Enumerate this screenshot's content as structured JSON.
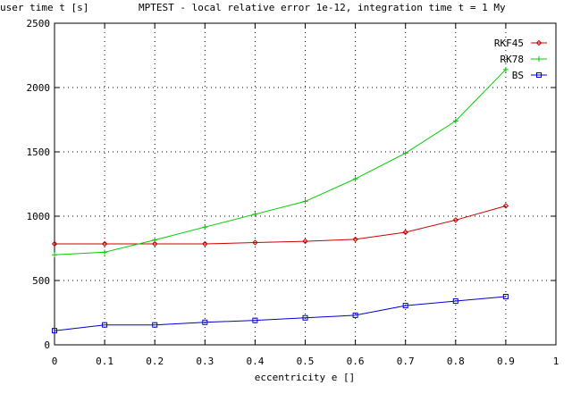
{
  "chart_data": {
    "type": "line",
    "title": "MPTEST - local relative error 1e-12, integration time t = 1 My",
    "xlabel": "eccentricity e []",
    "ylabel": "user time t [s]",
    "xlim": [
      0,
      1
    ],
    "ylim": [
      0,
      2500
    ],
    "x_ticks": [
      "0",
      "0.1",
      "0.2",
      "0.3",
      "0.4",
      "0.5",
      "0.6",
      "0.7",
      "0.8",
      "0.9",
      "1"
    ],
    "y_ticks": [
      "0",
      "500",
      "1000",
      "1500",
      "2000",
      "2500"
    ],
    "grid": true,
    "legend_position": "top-right",
    "x": [
      0,
      0.1,
      0.2,
      0.3,
      0.4,
      0.5,
      0.6,
      0.7,
      0.8,
      0.9
    ],
    "series": [
      {
        "name": "RKF45",
        "color": "#cc0000",
        "marker": "diamond",
        "values": [
          785,
          785,
          785,
          785,
          795,
          805,
          820,
          875,
          970,
          1080
        ]
      },
      {
        "name": "RK78",
        "color": "#00cc00",
        "marker": "plus",
        "values": [
          700,
          720,
          815,
          915,
          1015,
          1115,
          1290,
          1490,
          1740,
          2140
        ]
      },
      {
        "name": "BS",
        "color": "#0000cc",
        "marker": "square",
        "values": [
          110,
          155,
          155,
          175,
          190,
          210,
          230,
          305,
          340,
          375
        ]
      }
    ]
  }
}
